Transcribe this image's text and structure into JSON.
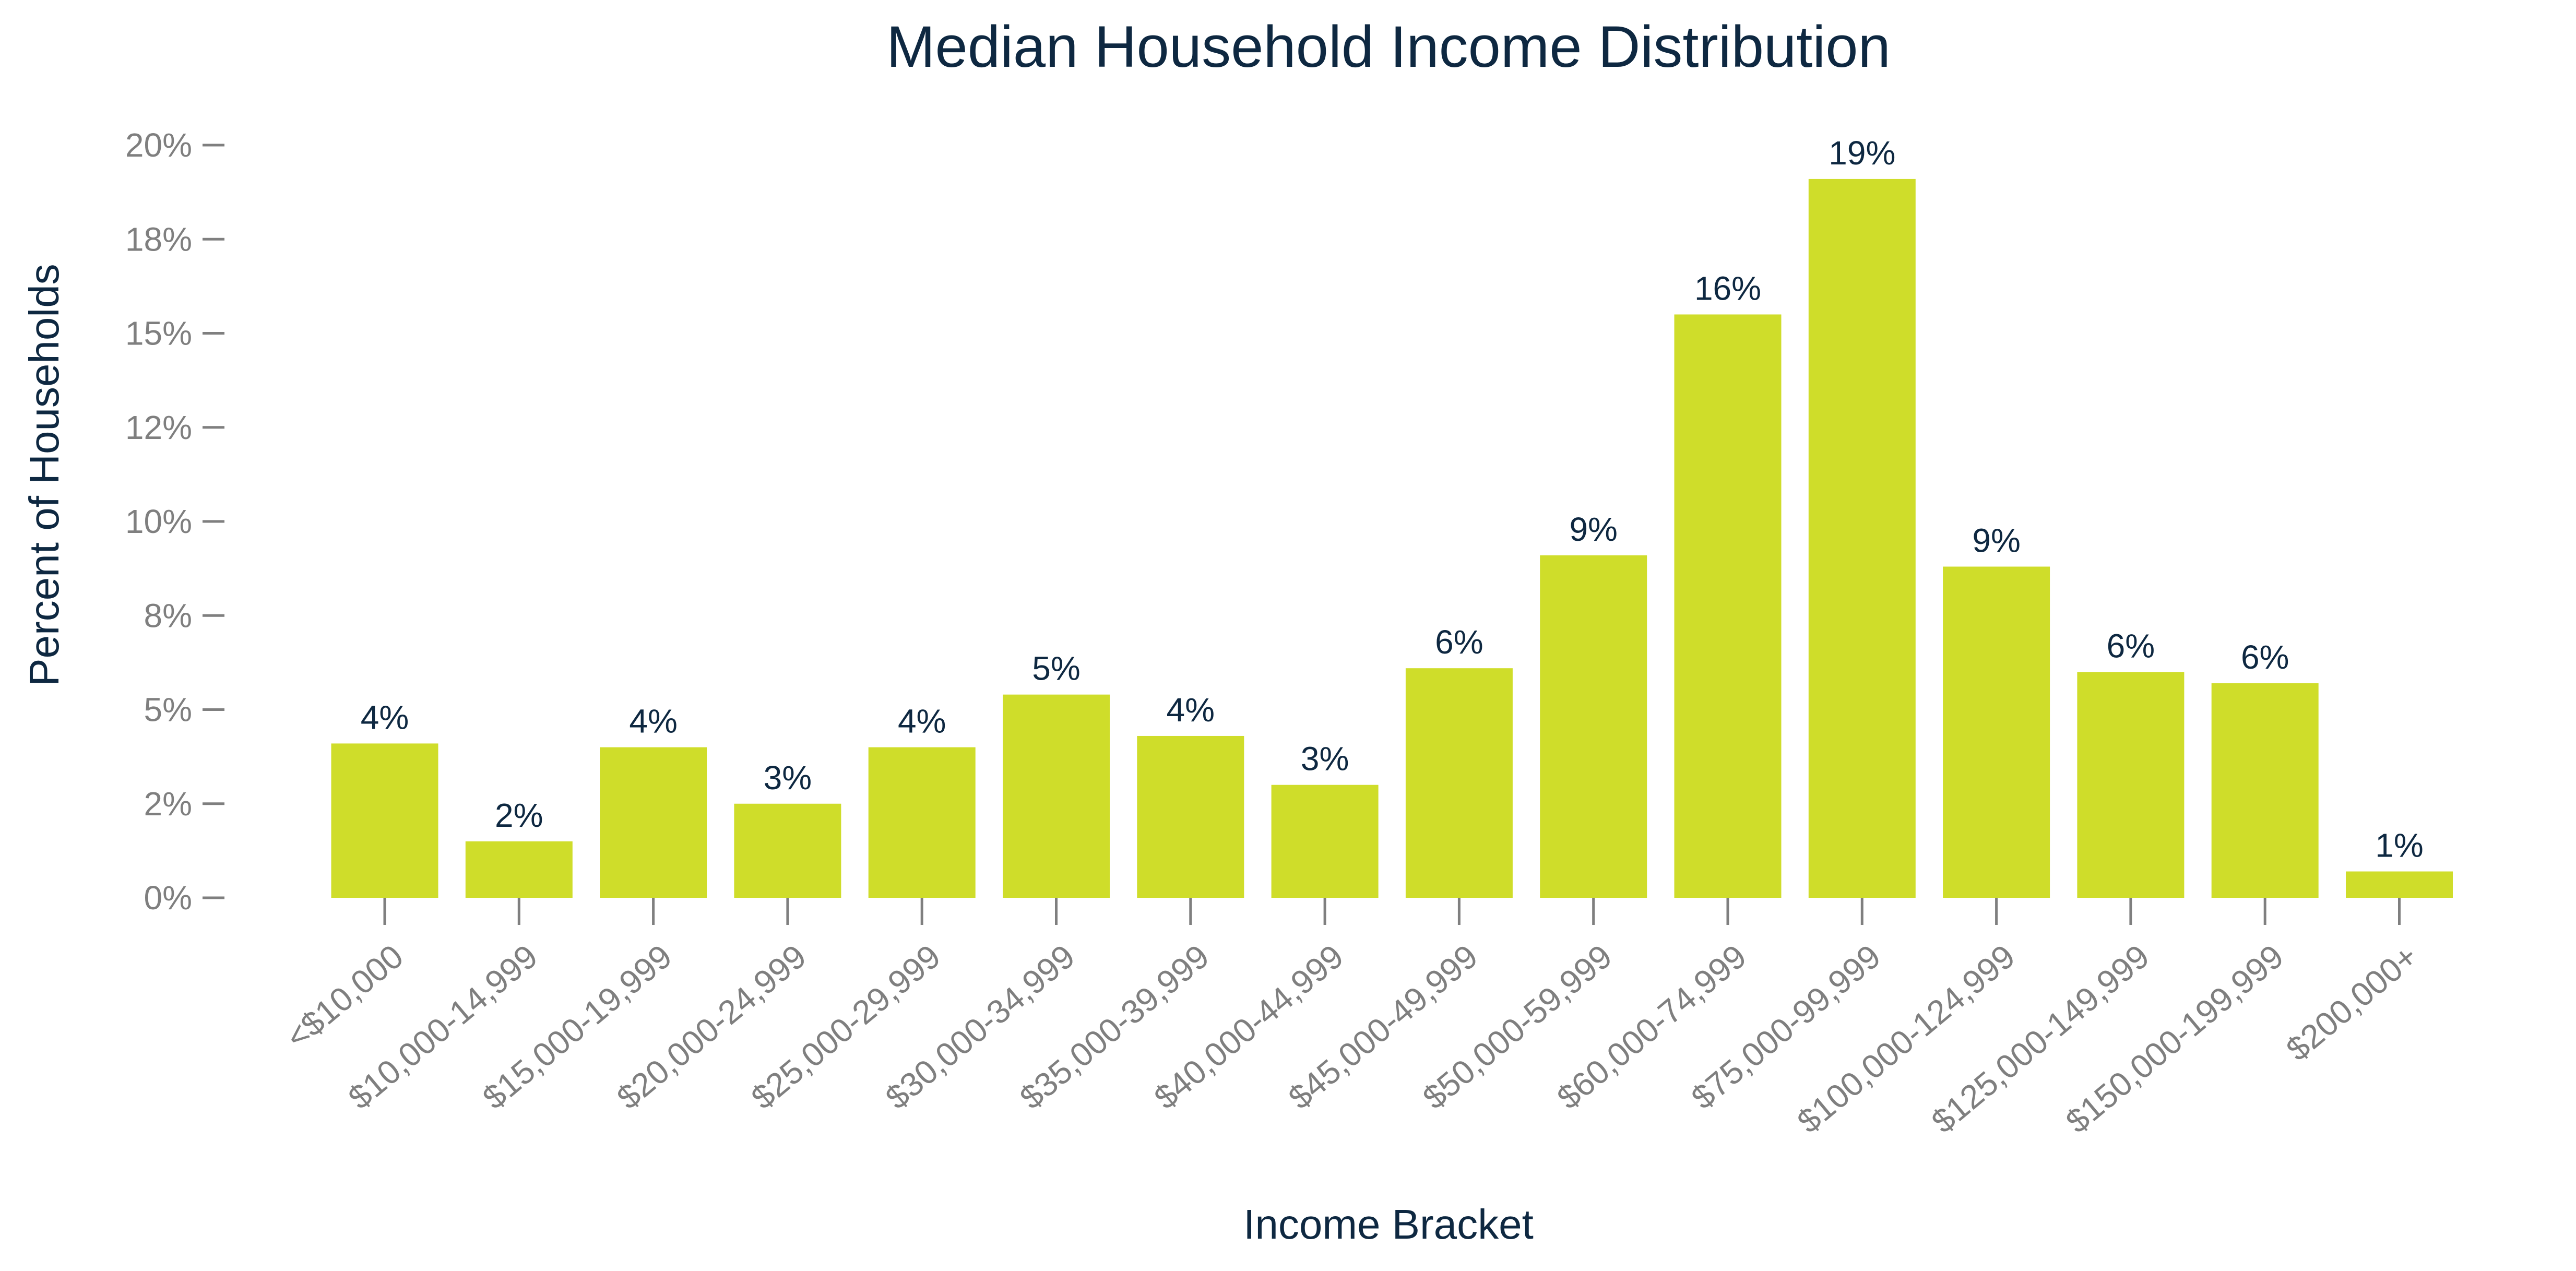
{
  "chart_data": {
    "type": "bar",
    "title": "Median Household Income Distribution",
    "xlabel": "Income Bracket",
    "ylabel": "Percent of Households",
    "categories": [
      "<$10,000",
      "$10,000-14,999",
      "$15,000-19,999",
      "$20,000-24,999",
      "$25,000-29,999",
      "$30,000-34,999",
      "$35,000-39,999",
      "$40,000-44,999",
      "$45,000-49,999",
      "$50,000-59,999",
      "$60,000-74,999",
      "$75,000-99,999",
      "$100,000-124,999",
      "$125,000-149,999",
      "$150,000-199,999",
      "$200,000+"
    ],
    "values": [
      4.1,
      1.5,
      4.0,
      2.5,
      4.0,
      5.4,
      4.3,
      3.0,
      6.1,
      9.1,
      15.5,
      19.1,
      8.8,
      6.0,
      5.7,
      0.7
    ],
    "value_labels": [
      "4%",
      "2%",
      "4%",
      "3%",
      "4%",
      "5%",
      "4%",
      "3%",
      "6%",
      "9%",
      "16%",
      "19%",
      "9%",
      "6%",
      "6%",
      "1%"
    ],
    "ylim": [
      0,
      20
    ],
    "yticks": [
      0,
      2.5,
      5,
      7.5,
      10,
      12.5,
      15,
      17.5,
      20
    ],
    "ytick_labels": [
      "0%",
      "2%",
      "5%",
      "8%",
      "10%",
      "12%",
      "15%",
      "18%",
      "20%"
    ],
    "grid": false,
    "legend": "none",
    "colors": {
      "bar": "#cfdd2a",
      "text": "#0e2841",
      "axis": "#7f7f7f"
    }
  }
}
